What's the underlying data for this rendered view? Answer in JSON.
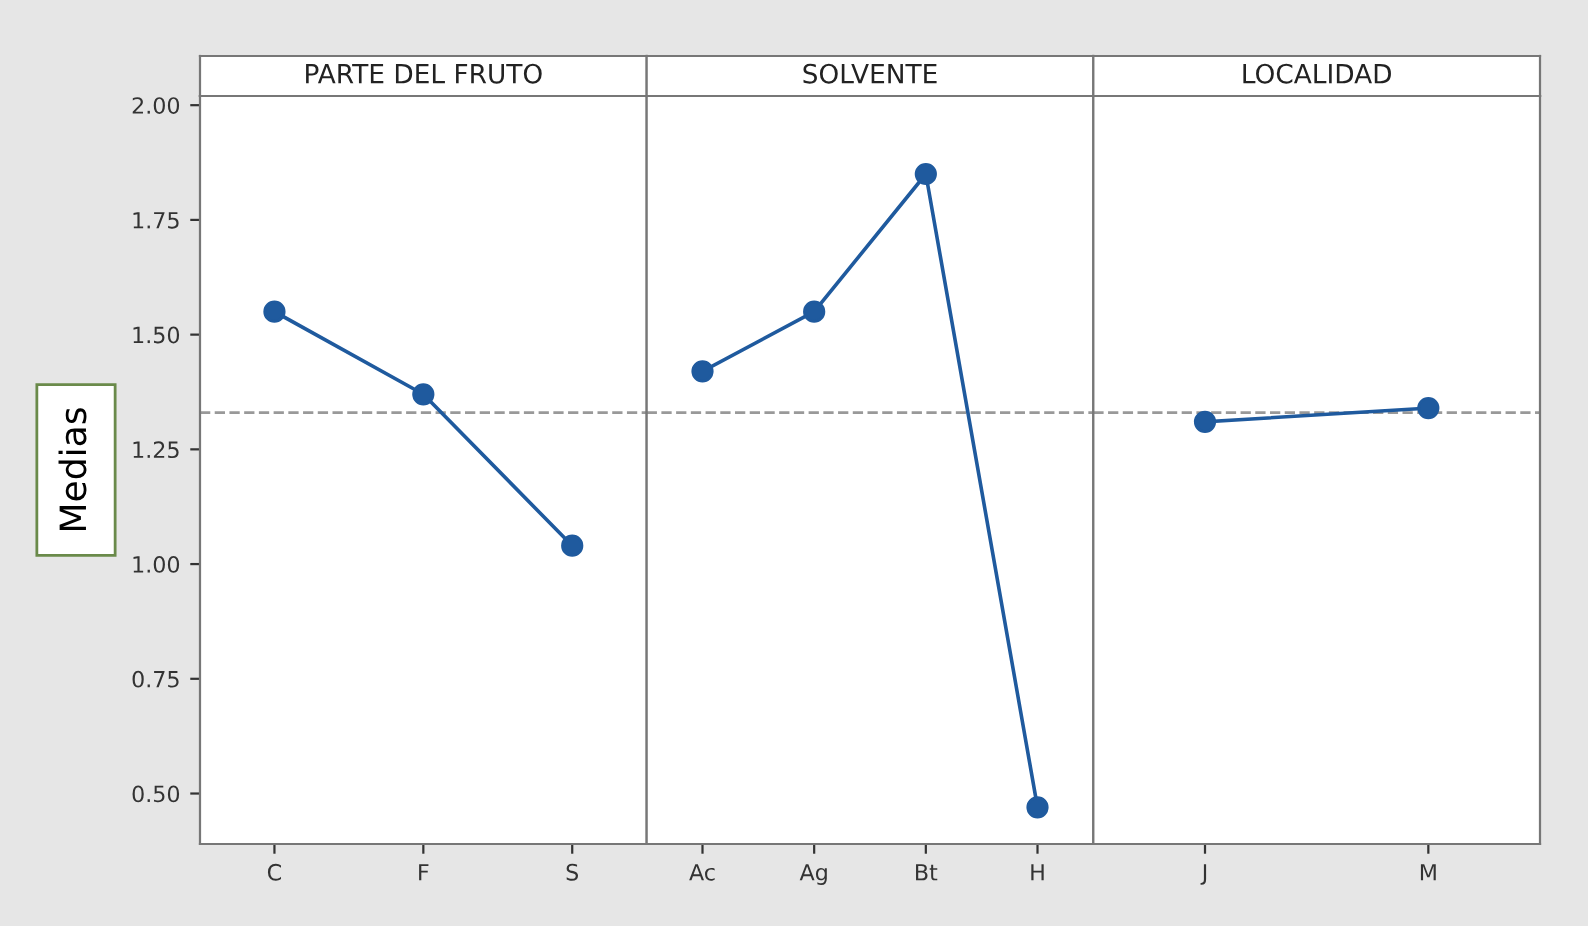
{
  "chart_data": [
    {
      "type": "line",
      "title": "PARTE DEL FRUTO",
      "ylabel": "Medias",
      "categories": [
        "C",
        "F",
        "S"
      ],
      "series": [
        {
          "color": "#1f5a9e",
          "values": [
            1.55,
            1.37,
            1.04
          ]
        }
      ],
      "ylim": [
        0.39,
        2.02
      ],
      "yticks": [
        {
          "value": 0.5,
          "label": "0.50"
        },
        {
          "value": 0.75,
          "label": "0.75"
        },
        {
          "value": 1.0,
          "label": "1.00"
        },
        {
          "value": 1.25,
          "label": "1.25"
        },
        {
          "value": 1.5,
          "label": "1.50"
        },
        {
          "value": 1.75,
          "label": "1.75"
        },
        {
          "value": 2.0,
          "label": "2.00"
        }
      ],
      "ref_lines": [
        {
          "axis": "y",
          "value": 1.33,
          "color": "#999999",
          "line_style": "dashed"
        }
      ],
      "marker": "circle",
      "grid": false
    },
    {
      "type": "line",
      "title": "SOLVENTE",
      "categories": [
        "Ac",
        "Ag",
        "Bt",
        "H"
      ],
      "series": [
        {
          "color": "#1f5a9e",
          "values": [
            1.42,
            1.55,
            1.85,
            0.47
          ]
        }
      ],
      "ylim": [
        0.39,
        2.02
      ],
      "tick_labels": "x",
      "ref_lines": [
        {
          "axis": "y",
          "value": 1.33,
          "color": "#999999",
          "line_style": "dashed"
        }
      ],
      "marker": "circle",
      "grid": false
    },
    {
      "type": "line",
      "title": "LOCALIDAD",
      "categories": [
        "J",
        "M"
      ],
      "series": [
        {
          "color": "#1f5a9e",
          "values": [
            1.31,
            1.34
          ]
        }
      ],
      "ylim": [
        0.39,
        2.02
      ],
      "tick_labels": "x",
      "ref_lines": [
        {
          "axis": "y",
          "value": 1.33,
          "color": "#999999",
          "line_style": "dashed"
        }
      ],
      "marker": "circle",
      "grid": false
    }
  ]
}
